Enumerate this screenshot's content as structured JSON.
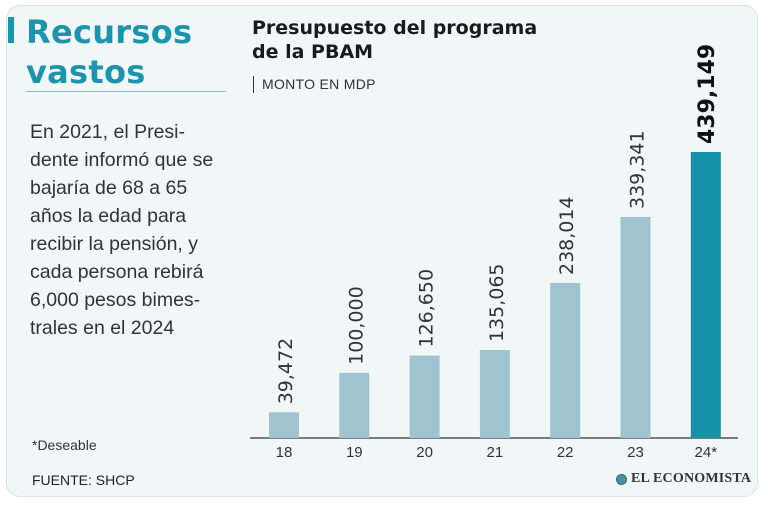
{
  "sidebar": {
    "headline": "Recursos vastos",
    "body_lines": [
      "En 2021, el Presi-",
      "dente informó que se",
      "bajaría de 68 a 65",
      "años la edad para",
      "recibir la pensión, y",
      "cada persona rebirá",
      "6,000 pesos bimes-",
      "trales en el 2024"
    ],
    "footnote": "*Deseable",
    "source": "FUENTE: SHCP"
  },
  "brand": {
    "logo_text": "EL ECONOMISTA"
  },
  "colors": {
    "accent": "#1b94ad",
    "bar": "#9fc4cf",
    "bar_highlight": "#1692a8",
    "background": "#f1f6f7"
  },
  "chart_data": {
    "type": "bar",
    "title": "Presupuesto del programa de la PBAM",
    "subtitle": "MONTO EN MDP",
    "xlabel": "",
    "ylabel": "",
    "categories": [
      "18",
      "19",
      "20",
      "21",
      "22",
      "23",
      "24*"
    ],
    "values": [
      39472,
      100000,
      126650,
      135065,
      238014,
      339341,
      439149
    ],
    "labels": [
      "39,472",
      "100,000",
      "126,650",
      "135,065",
      "238,014",
      "339,341",
      "439,149"
    ],
    "highlight_index": 6,
    "ylim": [
      0,
      439149
    ],
    "grid": false,
    "legend": "none"
  }
}
